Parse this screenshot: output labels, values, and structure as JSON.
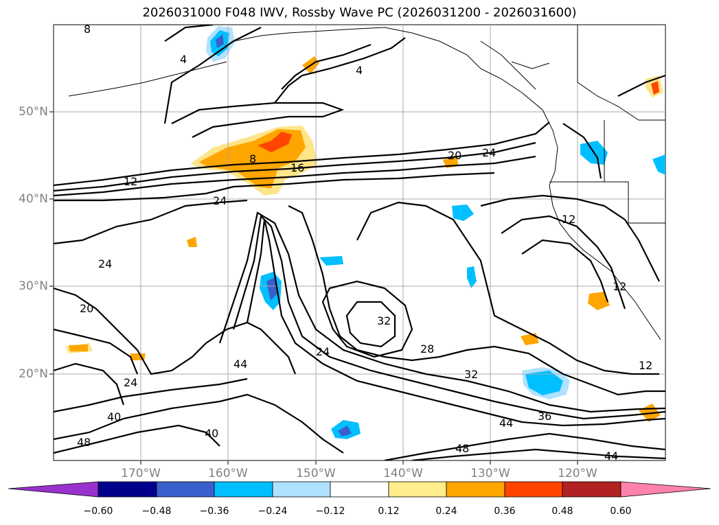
{
  "title": "2026031000 F048 IWV, Rossby Wave PC (2026031200 - 2026031600)",
  "axes": {
    "lat_labels": [
      "50°N",
      "40°N",
      "30°N",
      "20°N"
    ],
    "lon_labels": [
      "170°W",
      "160°W",
      "150°W",
      "140°W",
      "130°W",
      "120°W"
    ]
  },
  "contour_labels": [
    "8",
    "4",
    "4",
    "8",
    "16",
    "12",
    "20",
    "24",
    "24",
    "24",
    "20",
    "32",
    "28",
    "24",
    "44",
    "24",
    "40",
    "40",
    "48",
    "32",
    "36",
    "44",
    "48",
    "44",
    "12",
    "12",
    "12"
  ],
  "colorbar": {
    "ticks": [
      "−0.60",
      "−0.48",
      "−0.36",
      "−0.24",
      "−0.12",
      "0.12",
      "0.24",
      "0.36",
      "0.48",
      "0.60"
    ],
    "colors": [
      "#9932cc",
      "#00008b",
      "#3a5fcd",
      "#00bfff",
      "#b0e2ff",
      "#ffffff",
      "#ffec8b",
      "#ffa500",
      "#ff4500",
      "#b22222",
      "#ff82ab"
    ]
  }
}
